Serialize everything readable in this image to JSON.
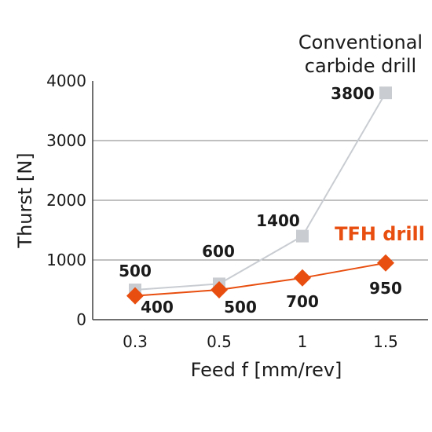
{
  "chart_data": {
    "type": "line",
    "categories": [
      "0.3",
      "0.5",
      "1",
      "1.5"
    ],
    "xlabel": "Feed f [mm/rev]",
    "ylabel": "Thurst [N]",
    "ylim": [
      0,
      4000
    ],
    "yticks": [
      "0",
      "1000",
      "2000",
      "3000",
      "4000"
    ],
    "grid": "horizontal",
    "series": [
      {
        "name_lines": [
          "Conventional",
          "carbide drill"
        ],
        "values": [
          500,
          600,
          1400,
          3800
        ],
        "labels": [
          "500",
          "600",
          "1400",
          "3800"
        ],
        "marker": "square",
        "color": "#c9cdd2"
      },
      {
        "name": "TFH drill",
        "values": [
          400,
          500,
          700,
          950
        ],
        "labels": [
          "400",
          "500",
          "700",
          "950"
        ],
        "marker": "diamond",
        "color": "#e84e0f"
      }
    ]
  }
}
